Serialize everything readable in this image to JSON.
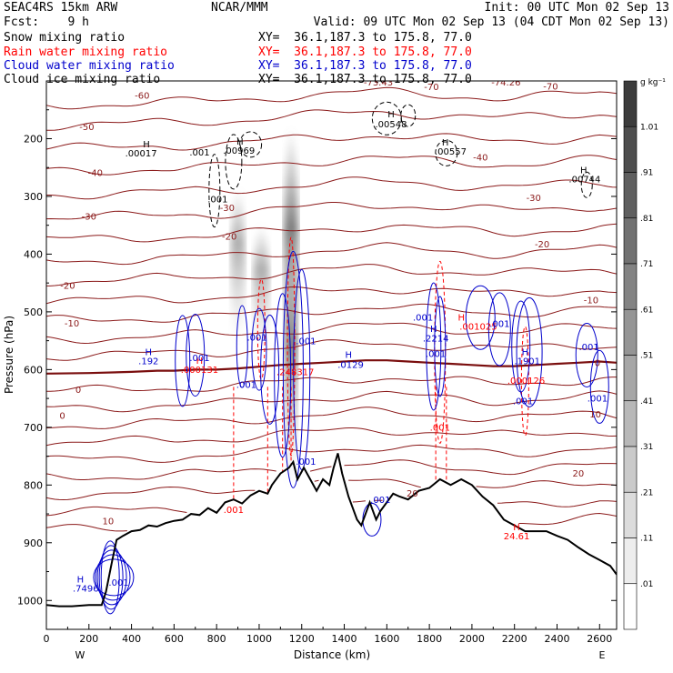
{
  "header": {
    "model": "SEAC4RS 15km ARW",
    "center": "NCAR/MMM",
    "init": "Init: 00 UTC Mon 02 Sep 13",
    "fcst": "Fcst:    9 h",
    "valid": "Valid: 09 UTC Mon 02 Sep 13 (04 CDT Mon 02 Sep 13)",
    "fields": [
      {
        "name": "Snow mixing ratio",
        "xy": "XY=  36.1,187.3 to 175.8, 77.0",
        "color": "#000000"
      },
      {
        "name": "Rain water mixing ratio",
        "xy": "XY=  36.1,187.3 to 175.8, 77.0",
        "color": "#ff0000"
      },
      {
        "name": "Cloud water mixing ratio",
        "xy": "XY=  36.1,187.3 to 175.8, 77.0",
        "color": "#0000cc"
      },
      {
        "name": "Cloud ice mixing ratio",
        "xy": "XY=  36.1,187.3 to 175.8, 77.0",
        "color": "#000000"
      }
    ]
  },
  "chart_data": {
    "type": "cross-section",
    "xlabel": "Distance (km)",
    "ylabel": "Pressure (hPa)",
    "xlim": [
      0,
      2680
    ],
    "ylim": [
      1050,
      100
    ],
    "x_ticks": [
      0,
      200,
      400,
      600,
      800,
      1000,
      1200,
      1400,
      1600,
      1800,
      2000,
      2200,
      2400,
      2600
    ],
    "y_ticks": [
      1000,
      900,
      800,
      700,
      600,
      500,
      400,
      300,
      200
    ],
    "x_ends": {
      "left": "W",
      "right": "E"
    },
    "colorbar": {
      "unit": "g kg⁻¹",
      "levels": [
        "1.01",
        ".91",
        ".81",
        ".71",
        ".61",
        ".51",
        ".41",
        ".31",
        ".21",
        ".11",
        ".01"
      ]
    },
    "terrain": [
      [
        0,
        1008
      ],
      [
        60,
        1010
      ],
      [
        120,
        1010
      ],
      [
        200,
        1008
      ],
      [
        260,
        1008
      ],
      [
        280,
        985
      ],
      [
        310,
        930
      ],
      [
        330,
        895
      ],
      [
        360,
        888
      ],
      [
        400,
        880
      ],
      [
        440,
        878
      ],
      [
        480,
        870
      ],
      [
        520,
        872
      ],
      [
        560,
        866
      ],
      [
        600,
        862
      ],
      [
        640,
        860
      ],
      [
        680,
        850
      ],
      [
        720,
        852
      ],
      [
        760,
        840
      ],
      [
        800,
        848
      ],
      [
        840,
        830
      ],
      [
        880,
        825
      ],
      [
        920,
        832
      ],
      [
        960,
        818
      ],
      [
        1000,
        810
      ],
      [
        1040,
        815
      ],
      [
        1060,
        800
      ],
      [
        1100,
        780
      ],
      [
        1140,
        770
      ],
      [
        1160,
        760
      ],
      [
        1180,
        790
      ],
      [
        1210,
        770
      ],
      [
        1240,
        790
      ],
      [
        1270,
        810
      ],
      [
        1300,
        790
      ],
      [
        1330,
        800
      ],
      [
        1350,
        770
      ],
      [
        1370,
        745
      ],
      [
        1390,
        780
      ],
      [
        1420,
        820
      ],
      [
        1460,
        860
      ],
      [
        1480,
        870
      ],
      [
        1500,
        850
      ],
      [
        1520,
        830
      ],
      [
        1550,
        860
      ],
      [
        1570,
        845
      ],
      [
        1600,
        830
      ],
      [
        1630,
        815
      ],
      [
        1660,
        820
      ],
      [
        1700,
        825
      ],
      [
        1750,
        810
      ],
      [
        1800,
        805
      ],
      [
        1850,
        790
      ],
      [
        1900,
        800
      ],
      [
        1950,
        790
      ],
      [
        2000,
        800
      ],
      [
        2050,
        820
      ],
      [
        2100,
        835
      ],
      [
        2150,
        860
      ],
      [
        2200,
        870
      ],
      [
        2250,
        880
      ],
      [
        2300,
        880
      ],
      [
        2350,
        880
      ],
      [
        2400,
        888
      ],
      [
        2450,
        895
      ],
      [
        2500,
        908
      ],
      [
        2550,
        920
      ],
      [
        2600,
        930
      ],
      [
        2650,
        940
      ],
      [
        2680,
        955
      ]
    ],
    "freezing_level": [
      [
        0,
        607
      ],
      [
        200,
        606
      ],
      [
        400,
        604
      ],
      [
        520,
        602
      ],
      [
        600,
        602
      ],
      [
        700,
        600
      ],
      [
        800,
        600
      ],
      [
        900,
        598
      ],
      [
        1000,
        595
      ],
      [
        1100,
        592
      ],
      [
        1200,
        590
      ],
      [
        1300,
        588
      ],
      [
        1400,
        586
      ],
      [
        1500,
        584
      ],
      [
        1600,
        584
      ],
      [
        1700,
        586
      ],
      [
        1800,
        588
      ],
      [
        1900,
        590
      ],
      [
        2000,
        592
      ],
      [
        2100,
        594
      ],
      [
        2200,
        594
      ],
      [
        2300,
        592
      ],
      [
        2400,
        590
      ],
      [
        2500,
        588
      ],
      [
        2600,
        586
      ],
      [
        2680,
        588
      ]
    ],
    "temperature_labels": [
      {
        "text": "-60",
        "x": 450,
        "p": 131
      },
      {
        "text": "-50",
        "x": 190,
        "p": 185
      },
      {
        "text": "-40",
        "x": 230,
        "p": 265
      },
      {
        "text": "-30",
        "x": 200,
        "p": 340
      },
      {
        "text": "-30",
        "x": 850,
        "p": 325
      },
      {
        "text": "-20",
        "x": 100,
        "p": 460
      },
      {
        "text": "-20",
        "x": 860,
        "p": 375
      },
      {
        "text": "-10",
        "x": 120,
        "p": 525
      },
      {
        "text": "0",
        "x": 150,
        "p": 640
      },
      {
        "text": "0",
        "x": 75,
        "p": 685
      },
      {
        "text": "-70",
        "x": 1810,
        "p": 116
      },
      {
        "text": "-70",
        "x": 2370,
        "p": 115
      },
      {
        "text": "-73.43",
        "x": 1560,
        "p": 108
      },
      {
        "text": "-74.26",
        "x": 2160,
        "p": 108
      },
      {
        "text": "-40",
        "x": 2040,
        "p": 238
      },
      {
        "text": "-30",
        "x": 2290,
        "p": 308
      },
      {
        "text": "-20",
        "x": 2330,
        "p": 388
      },
      {
        "text": "-10",
        "x": 2560,
        "p": 485
      },
      {
        "text": "0",
        "x": 2590,
        "p": 594
      },
      {
        "text": "10",
        "x": 2580,
        "p": 683
      },
      {
        "text": "10",
        "x": 290,
        "p": 868
      },
      {
        "text": "20",
        "x": 2500,
        "p": 785
      },
      {
        "text": "20",
        "x": 1720,
        "p": 820
      }
    ],
    "max_labels": [
      {
        "text": "H",
        "x": 470,
        "p": 215,
        "color": "#000000"
      },
      {
        "text": ".00017",
        "x": 445,
        "p": 231,
        "color": "#000000"
      },
      {
        "text": ".001",
        "x": 720,
        "p": 229,
        "color": "#000000"
      },
      {
        "text": "H",
        "x": 910,
        "p": 210,
        "color": "#000000"
      },
      {
        "text": ".00969",
        "x": 905,
        "p": 226,
        "color": "#000000"
      },
      {
        "text": ".001",
        "x": 805,
        "p": 310,
        "color": "#000000"
      },
      {
        "text": "H",
        "x": 1620,
        "p": 163,
        "color": "#000000"
      },
      {
        "text": ".00548",
        "x": 1620,
        "p": 180,
        "color": "#000000"
      },
      {
        "text": "H",
        "x": 1875,
        "p": 212,
        "color": "#000000"
      },
      {
        "text": ".00557",
        "x": 1900,
        "p": 228,
        "color": "#000000"
      },
      {
        "text": "H",
        "x": 2525,
        "p": 260,
        "color": "#000000"
      },
      {
        "text": ".00744",
        "x": 2530,
        "p": 276,
        "color": "#000000"
      },
      {
        "text": "H",
        "x": 720,
        "p": 590,
        "color": "#ff0000"
      },
      {
        "text": ".000131",
        "x": 720,
        "p": 606,
        "color": "#ff0000"
      },
      {
        "text": ".248317",
        "x": 1170,
        "p": 610,
        "color": "#ff0000"
      },
      {
        "text": "H",
        "x": 1950,
        "p": 515,
        "color": "#ff0000"
      },
      {
        "text": ".001025",
        "x": 2030,
        "p": 531,
        "color": "#ff0000"
      },
      {
        "text": ".000126",
        "x": 2255,
        "p": 625,
        "color": "#ff0000"
      },
      {
        "text": ".001",
        "x": 1850,
        "p": 706,
        "color": "#ff0000"
      },
      {
        "text": "H",
        "x": 2210,
        "p": 878,
        "color": "#ff0000"
      },
      {
        "text": "24.61",
        "x": 2210,
        "p": 894,
        "color": "#ff0000"
      },
      {
        "text": ".001",
        "x": 880,
        "p": 848,
        "color": "#ff0000"
      },
      {
        "text": "H",
        "x": 480,
        "p": 575,
        "color": "#0000cc"
      },
      {
        "text": ".192",
        "x": 480,
        "p": 591,
        "color": "#0000cc"
      },
      {
        "text": ".001",
        "x": 720,
        "p": 585,
        "color": "#0000cc"
      },
      {
        "text": ".001",
        "x": 990,
        "p": 550,
        "color": "#0000cc"
      },
      {
        "text": ".001",
        "x": 1220,
        "p": 556,
        "color": "#0000cc"
      },
      {
        "text": "H",
        "x": 1420,
        "p": 580,
        "color": "#0000cc"
      },
      {
        "text": ".0129",
        "x": 1430,
        "p": 597,
        "color": "#0000cc"
      },
      {
        "text": ".001",
        "x": 1770,
        "p": 515,
        "color": "#0000cc"
      },
      {
        "text": "H",
        "x": 1820,
        "p": 535,
        "color": "#0000cc"
      },
      {
        "text": ".2214",
        "x": 1830,
        "p": 551,
        "color": "#0000cc"
      },
      {
        "text": ".001",
        "x": 1830,
        "p": 578,
        "color": "#0000cc"
      },
      {
        "text": ".001",
        "x": 2130,
        "p": 526,
        "color": "#0000cc"
      },
      {
        "text": "H",
        "x": 2250,
        "p": 575,
        "color": "#0000cc"
      },
      {
        "text": ".1901",
        "x": 2260,
        "p": 591,
        "color": "#0000cc"
      },
      {
        "text": ".001",
        "x": 2550,
        "p": 566,
        "color": "#0000cc"
      },
      {
        "text": ".001",
        "x": 2590,
        "p": 655,
        "color": "#0000cc"
      },
      {
        "text": ".001",
        "x": 2240,
        "p": 660,
        "color": "#0000cc"
      },
      {
        "text": ".001",
        "x": 1570,
        "p": 831,
        "color": "#0000cc"
      },
      {
        "text": "H",
        "x": 160,
        "p": 969,
        "color": "#0000cc"
      },
      {
        "text": ".7496",
        "x": 185,
        "p": 985,
        "color": "#0000cc"
      },
      {
        "text": ".001",
        "x": 340,
        "p": 974,
        "color": "#0000cc"
      },
      {
        "text": ".001",
        "x": 940,
        "p": 632,
        "color": "#0000cc"
      },
      {
        "text": ".001",
        "x": 1220,
        "p": 765,
        "color": "#0000cc"
      }
    ]
  }
}
